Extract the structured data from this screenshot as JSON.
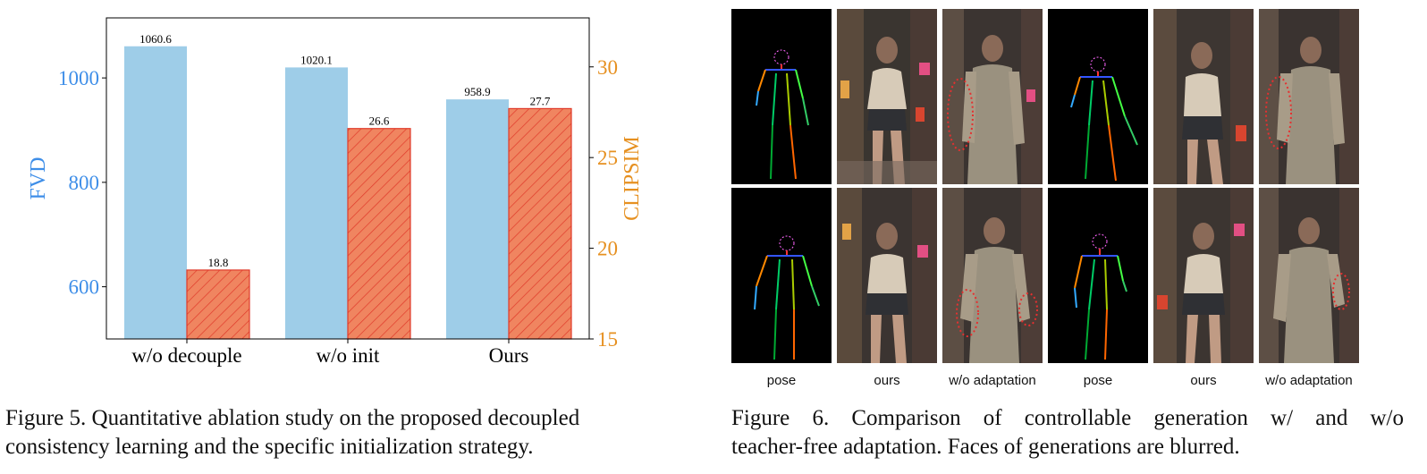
{
  "figure5": {
    "caption_line1": "Figure 5. Quantitative ablation study on the proposed decoupled",
    "caption_line2": "consistency learning and the specific initialization strategy.",
    "chart_data": {
      "type": "bar",
      "categories": [
        "w/o decouple",
        "w/o init",
        "Ours"
      ],
      "series": [
        {
          "name": "FVD",
          "axis": "left",
          "values": [
            1060.6,
            1020.1,
            958.9
          ],
          "labels": [
            "1060.6",
            "1020.1",
            "958.9"
          ],
          "color": "#9ecde8",
          "pattern": "solid"
        },
        {
          "name": "CLIPSIM",
          "axis": "right",
          "values": [
            18.8,
            26.6,
            27.7
          ],
          "labels": [
            "18.8",
            "26.6",
            "27.7"
          ],
          "color": "#f08560",
          "edge": "#e03a2a",
          "pattern": "hatch"
        }
      ],
      "left_axis": {
        "label": "FVD",
        "range": [
          500,
          1115
        ],
        "ticks": [
          600,
          800,
          1000
        ],
        "color": "#3e8ee8"
      },
      "right_axis": {
        "label": "CLIPSIM",
        "range": [
          15,
          32.7
        ],
        "ticks": [
          15,
          20,
          25,
          30
        ],
        "color": "#e69020"
      },
      "grid": false
    }
  },
  "figure6": {
    "caption_line1": "Figure 6.  Comparison of controllable generation w/ and w/o",
    "caption_line2": "teacher-free adaptation. Faces of generations are blurred.",
    "columns": [
      "pose",
      "ours",
      "w/o adaptation",
      "pose",
      "ours",
      "w/o adaptation"
    ]
  }
}
